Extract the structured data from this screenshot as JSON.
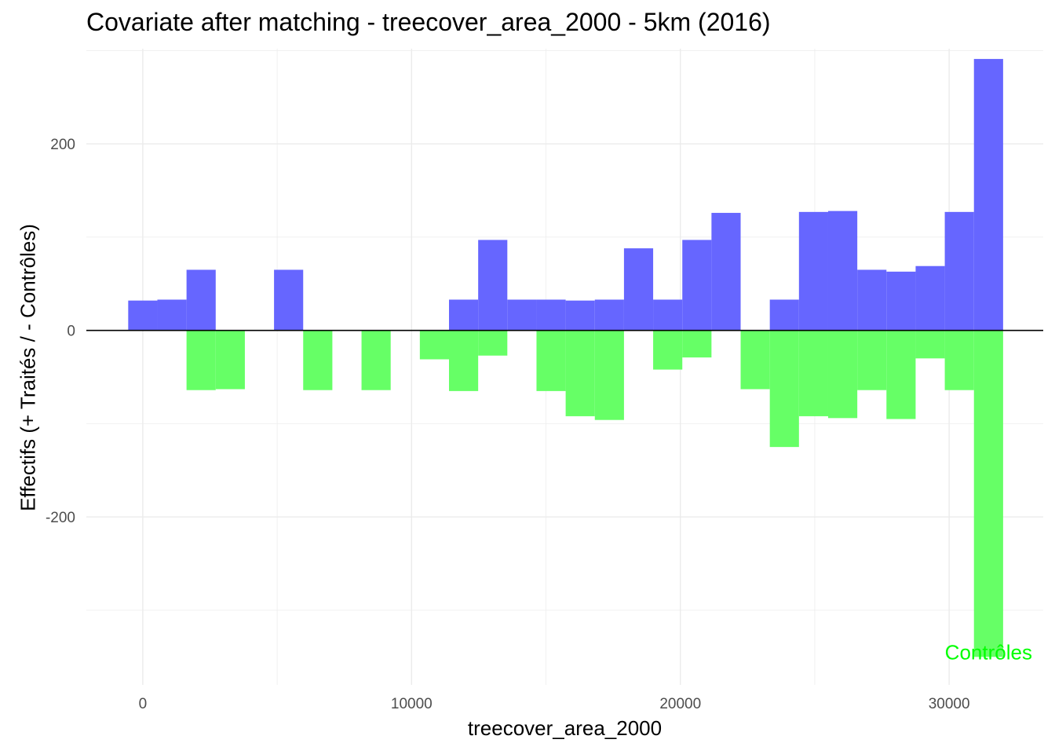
{
  "chart_data": {
    "type": "bar",
    "title": "Covariate after matching - treecover_area_2000 - 5km (2016)",
    "xlabel": "treecover_area_2000",
    "ylabel": "Effectifs (+ Traités / - Contrôles)",
    "xlim": [
      -2100,
      33500
    ],
    "ylim": [
      -380,
      302
    ],
    "x_ticks": [
      0,
      10000,
      20000,
      30000
    ],
    "x_tick_labels": [
      "0",
      "10000",
      "20000",
      "30000"
    ],
    "y_ticks": [
      -200,
      0,
      200
    ],
    "y_tick_labels": [
      "-200",
      "0",
      "200"
    ],
    "grid": true,
    "bin_width": 1085,
    "bin_centers": [
      0,
      1085,
      2170,
      3255,
      4340,
      5425,
      6510,
      7595,
      8680,
      9765,
      10850,
      11935,
      13020,
      14105,
      15190,
      16275,
      17360,
      18445,
      19530,
      20615,
      21700,
      22785,
      23870,
      24955,
      26040,
      27125,
      28210,
      29295,
      30380,
      31465
    ],
    "series": [
      {
        "name": "",
        "color": "#6666ff",
        "values": [
          32,
          33,
          65,
          0,
          0,
          65,
          0,
          0,
          0,
          0,
          0,
          33,
          97,
          33,
          33,
          32,
          33,
          88,
          33,
          97,
          126,
          0,
          33,
          127,
          128,
          65,
          63,
          69,
          127,
          291
        ]
      },
      {
        "name": "",
        "color": "#66ff66",
        "values": [
          0,
          0,
          -64,
          -63,
          0,
          0,
          -64,
          0,
          -64,
          0,
          -31,
          -65,
          -27,
          0,
          -65,
          -92,
          -96,
          0,
          -42,
          -29,
          0,
          -63,
          -125,
          -92,
          -94,
          -64,
          -95,
          -30,
          -64,
          -350
        ]
      }
    ],
    "annotations": [
      {
        "text": "Contrôles",
        "x": 31465,
        "y": -345,
        "color": "#00ff00"
      }
    ]
  }
}
